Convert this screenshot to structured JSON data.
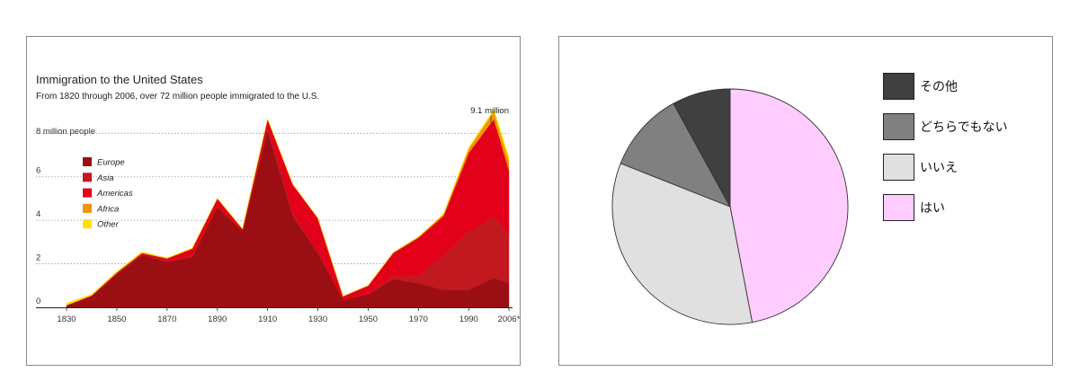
{
  "chart_data": [
    {
      "type": "area",
      "stacked": true,
      "title": "Immigration to the United States",
      "subtitle": "From 1820 through 2006, over 72 million people immigrated to the U.S.",
      "unit_label": "8 million people",
      "callout": "9.1 million",
      "x": [
        1830,
        1840,
        1850,
        1860,
        1870,
        1880,
        1890,
        1900,
        1910,
        1920,
        1930,
        1940,
        1950,
        1960,
        1970,
        1980,
        1990,
        2000,
        2006
      ],
      "x_tick_labels": [
        "1830",
        "1850",
        "1870",
        "1890",
        "1910",
        "1930",
        "1950",
        "1970",
        "1990",
        "2006*"
      ],
      "x_tick_values": [
        1830,
        1850,
        1870,
        1890,
        1910,
        1930,
        1950,
        1970,
        1990,
        2006
      ],
      "y_tick_labels": [
        "0",
        "2",
        "4",
        "6"
      ],
      "y_tick_values": [
        0,
        2,
        4,
        6
      ],
      "ylim": [
        0,
        9.5
      ],
      "series": [
        {
          "name": "Europe",
          "color": "#9b0f14",
          "values": [
            0.1,
            0.5,
            1.5,
            2.4,
            2.1,
            2.3,
            4.6,
            3.5,
            8.1,
            4.2,
            2.5,
            0.35,
            0.6,
            1.3,
            1.1,
            0.8,
            0.8,
            1.35,
            1.1
          ]
        },
        {
          "name": "Asia",
          "color": "#c1191f",
          "values": [
            0.0,
            0.0,
            0.05,
            0.05,
            0.05,
            0.1,
            0.05,
            0.05,
            0.3,
            0.15,
            0.05,
            0.01,
            0.05,
            0.15,
            0.4,
            1.6,
            2.7,
            2.8,
            2.3
          ]
        },
        {
          "name": "Americas",
          "color": "#e3001b",
          "values": [
            0.0,
            0.05,
            0.05,
            0.05,
            0.1,
            0.3,
            0.35,
            0.05,
            0.25,
            1.3,
            1.55,
            0.15,
            0.35,
            1.05,
            1.7,
            1.8,
            3.6,
            4.5,
            2.9
          ]
        },
        {
          "name": "Africa",
          "color": "#f0950a",
          "values": [
            0,
            0,
            0,
            0,
            0,
            0,
            0,
            0,
            0,
            0,
            0,
            0,
            0,
            0.02,
            0.03,
            0.08,
            0.2,
            0.35,
            0.4
          ]
        },
        {
          "name": "Other",
          "color": "#ffe000",
          "values": [
            0.1,
            0.05,
            0.05,
            0.05,
            0.03,
            0.03,
            0.02,
            0.02,
            0.02,
            0.02,
            0.01,
            0.01,
            0.01,
            0.01,
            0.02,
            0.02,
            0.05,
            0.1,
            0.2
          ]
        }
      ]
    },
    {
      "type": "pie",
      "start": "top",
      "direction": "clockwise",
      "slices": [
        {
          "label": "はい",
          "value": 47,
          "color": "#ffccff"
        },
        {
          "label": "いいえ",
          "value": 34,
          "color": "#e0e0e0"
        },
        {
          "label": "どちらでもない",
          "value": 11,
          "color": "#808080"
        },
        {
          "label": "その他",
          "value": 8,
          "color": "#404040"
        }
      ],
      "legend_order": [
        "その他",
        "どちらでもない",
        "いいえ",
        "はい"
      ],
      "legend_position": "right"
    }
  ]
}
